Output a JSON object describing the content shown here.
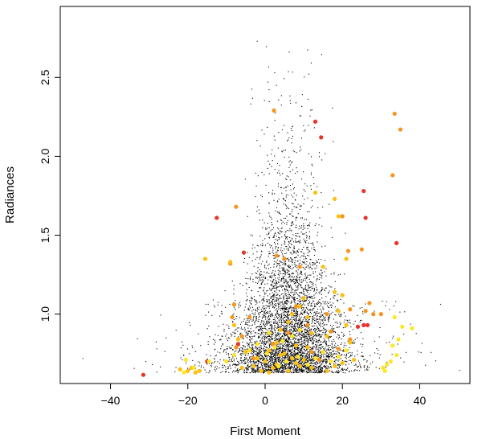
{
  "chart_data": {
    "type": "scatter",
    "title": "",
    "xlabel": "First Moment",
    "ylabel": "Radiances",
    "xlim": [
      -53,
      53
    ],
    "ylim": [
      0.56,
      2.95
    ],
    "xticks": [
      {
        "value": -40,
        "label": "−40"
      },
      {
        "value": -20,
        "label": "−20"
      },
      {
        "value": 0,
        "label": "0"
      },
      {
        "value": 20,
        "label": "20"
      },
      {
        "value": 40,
        "label": "40"
      }
    ],
    "yticks": [
      {
        "value": 1.0,
        "label": "1.0"
      },
      {
        "value": 1.5,
        "label": "1.5"
      },
      {
        "value": 2.0,
        "label": "2.0"
      },
      {
        "value": 2.5,
        "label": "2.5"
      }
    ],
    "grid": false,
    "colors": {
      "background_points": "#000000",
      "red": "#e8342a",
      "orange": "#f7941d",
      "yellow": "#fde725",
      "amber": "#fcc010"
    },
    "background_cloud": {
      "description_of_spread": "dense black points concentrated near x 0 to 12, y 0.63 to 2.9",
      "center_x": 6,
      "x_spread_base": 4.5,
      "y_min": 0.63,
      "y_max": 2.9,
      "count": 5200
    },
    "series": [
      {
        "color": "#e8342a",
        "points": [
          [
            -31.5,
            0.615
          ],
          [
            13,
            2.22
          ],
          [
            14.5,
            2.12
          ],
          [
            -12.5,
            1.61
          ],
          [
            -5.5,
            1.39
          ],
          [
            25.5,
            1.78
          ],
          [
            26,
            1.61
          ],
          [
            34,
            1.45
          ],
          [
            24,
            0.92
          ],
          [
            25.5,
            0.93
          ],
          [
            26.5,
            0.93
          ],
          [
            -7,
            0.81
          ],
          [
            -15,
            0.7
          ]
        ]
      },
      {
        "color": "#f7941d",
        "points": [
          [
            33.5,
            2.27
          ],
          [
            35,
            2.17
          ],
          [
            33,
            1.88
          ],
          [
            -7.5,
            1.68
          ],
          [
            20,
            1.62
          ],
          [
            21.5,
            1.4
          ],
          [
            25,
            1.41
          ],
          [
            27,
            1.07
          ],
          [
            28,
            1.0
          ],
          [
            22,
            1.03
          ],
          [
            -9,
            1.32
          ],
          [
            -8,
            1.06
          ],
          [
            -8.5,
            0.98
          ],
          [
            -6,
            0.86
          ],
          [
            -7.5,
            0.79
          ],
          [
            5,
            1.35
          ],
          [
            9,
            1.3
          ],
          [
            3,
            1.37
          ],
          [
            16,
            1.0
          ],
          [
            17,
            0.89
          ],
          [
            22,
            0.84
          ],
          [
            26,
            1.02
          ],
          [
            30,
            1.0
          ],
          [
            19,
            0.78
          ],
          [
            -4,
            0.98
          ],
          [
            11,
            0.93
          ],
          [
            8,
            1.05
          ],
          [
            6,
            0.88
          ],
          [
            2,
            0.81
          ],
          [
            12,
            0.76
          ],
          [
            -3,
            0.72
          ],
          [
            14,
            0.71
          ],
          [
            2.3,
            2.29
          ]
        ]
      },
      {
        "color": "#fcc010",
        "points": [
          [
            -15.5,
            1.35
          ],
          [
            -9,
            1.33
          ],
          [
            13,
            1.77
          ],
          [
            18,
            1.73
          ],
          [
            19,
            1.62
          ],
          [
            21,
            1.35
          ],
          [
            15,
            1.3
          ],
          [
            18,
            1.14
          ],
          [
            20,
            1.12
          ],
          [
            19,
            1.02
          ],
          [
            21,
            0.93
          ],
          [
            16,
            0.86
          ],
          [
            22,
            0.82
          ],
          [
            23,
            0.71
          ],
          [
            -8,
            0.93
          ],
          [
            -7,
            0.84
          ],
          [
            -5,
            0.76
          ],
          [
            -2,
            0.72
          ],
          [
            0,
            0.7
          ],
          [
            1,
            0.77
          ],
          [
            3,
            0.82
          ],
          [
            4,
            0.9
          ],
          [
            6,
            0.95
          ],
          [
            7,
            1.0
          ],
          [
            9,
            1.05
          ],
          [
            10,
            1.1
          ],
          [
            11,
            0.98
          ],
          [
            12,
            0.88
          ],
          [
            8,
            0.8
          ],
          [
            5,
            0.75
          ],
          [
            3,
            0.68
          ],
          [
            2,
            0.66
          ],
          [
            6,
            0.64
          ],
          [
            9,
            0.67
          ],
          [
            10,
            0.71
          ],
          [
            12,
            0.66
          ],
          [
            -1,
            0.64
          ],
          [
            1,
            0.63
          ],
          [
            7,
            0.72
          ],
          [
            4,
            0.74
          ],
          [
            8,
            0.69
          ],
          [
            11,
            0.79
          ],
          [
            -20,
            0.64
          ],
          [
            -18,
            0.63
          ],
          [
            -17,
            0.64
          ],
          [
            -22,
            0.65
          ],
          [
            -19,
            0.66
          ],
          [
            -6,
            0.66
          ],
          [
            -3,
            0.67
          ],
          [
            16,
            0.64
          ],
          [
            18,
            0.67
          ],
          [
            20,
            0.69
          ]
        ]
      },
      {
        "color": "#fde725",
        "points": [
          [
            33.5,
            0.98
          ],
          [
            35.5,
            0.92
          ],
          [
            38,
            0.91
          ],
          [
            34.5,
            0.84
          ],
          [
            33,
            0.8
          ],
          [
            34,
            0.74
          ],
          [
            32.5,
            0.7
          ],
          [
            31.5,
            0.68
          ],
          [
            30.5,
            0.66
          ],
          [
            31,
            0.64
          ],
          [
            -20.5,
            0.71
          ],
          [
            -14.5,
            0.7
          ],
          [
            -21,
            0.63
          ],
          [
            -18.5,
            0.66
          ],
          [
            0.5,
            0.75
          ],
          [
            2.5,
            0.79
          ],
          [
            4.5,
            0.83
          ],
          [
            7,
            0.86
          ],
          [
            9,
            0.9
          ],
          [
            1,
            0.88
          ],
          [
            3.5,
            0.67
          ],
          [
            5.5,
            0.7
          ],
          [
            8.5,
            0.73
          ],
          [
            11,
            0.68
          ],
          [
            13,
            0.72
          ],
          [
            15,
            0.76
          ],
          [
            17,
            0.7
          ],
          [
            19,
            0.73
          ],
          [
            21,
            0.77
          ],
          [
            -10,
            0.7
          ],
          [
            -8,
            0.74
          ],
          [
            -4,
            0.77
          ],
          [
            -2,
            0.81
          ]
        ]
      }
    ]
  }
}
